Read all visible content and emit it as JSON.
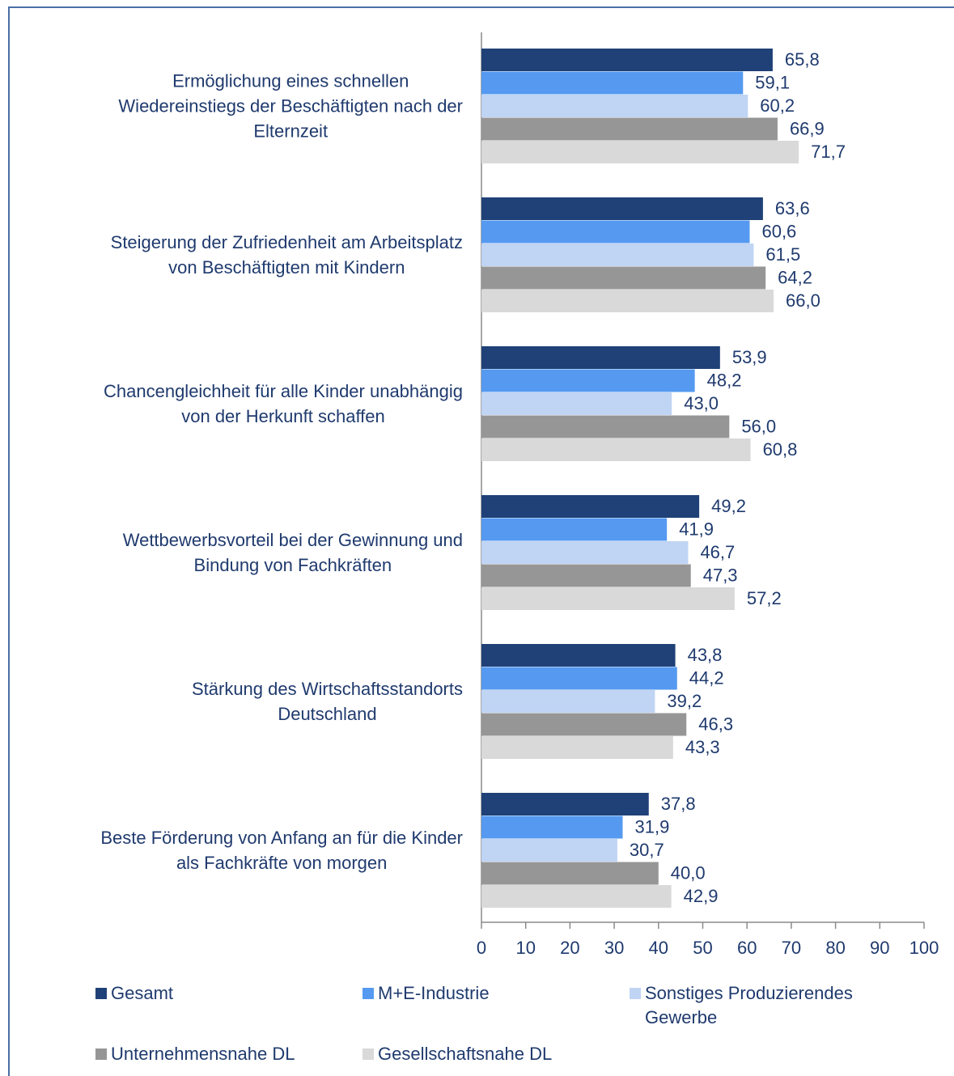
{
  "chart_data": {
    "type": "bar",
    "orientation": "horizontal",
    "categories": [
      "Ermöglichung eines schnellen\nWiedereinstiegs der Beschäftigten nach der\nElternzeit",
      "Steigerung der Zufriedenheit am Arbeitsplatz\nvon Beschäftigten mit Kindern",
      "Chancengleichheit für alle Kinder unabhängig\nvon der Herkunft schaffen",
      "Wettbewerbsvorteil bei der Gewinnung und\nBindung von Fachkräften",
      "Stärkung des Wirtschaftsstandorts\nDeutschland",
      "Beste Förderung von Anfang an für die Kinder\nals Fachkräfte von morgen"
    ],
    "series": [
      {
        "name": "Gesamt",
        "color": "#1f4177",
        "values": [
          65.8,
          63.6,
          53.9,
          49.2,
          43.8,
          37.8
        ],
        "value_labels": [
          "65,8",
          "63,6",
          "53,9",
          "49,2",
          "43,8",
          "37,8"
        ]
      },
      {
        "name": "M+E-Industrie",
        "color": "#5599f0",
        "values": [
          59.1,
          60.6,
          48.2,
          41.9,
          44.2,
          31.9
        ],
        "value_labels": [
          "59,1",
          "60,6",
          "48,2",
          "41,9",
          "44,2",
          "31,9"
        ]
      },
      {
        "name": "Sonstiges Produzierendes Gewerbe",
        "color": "#c0d4f4",
        "values": [
          60.2,
          61.5,
          43.0,
          46.7,
          39.2,
          30.7
        ],
        "value_labels": [
          "60,2",
          "61,5",
          "43,0",
          "46,7",
          "39,2",
          "30,7"
        ]
      },
      {
        "name": "Unternehmensnahe DL",
        "color": "#969696",
        "values": [
          66.9,
          64.2,
          56.0,
          47.3,
          46.3,
          40.0
        ],
        "value_labels": [
          "66,9",
          "64,2",
          "56,0",
          "47,3",
          "46,3",
          "40,0"
        ]
      },
      {
        "name": "Gesellschaftsnahe DL",
        "color": "#d9d9d9",
        "values": [
          71.7,
          66.0,
          60.8,
          57.2,
          43.3,
          42.9
        ],
        "value_labels": [
          "71,7",
          "66,0",
          "60,8",
          "57,2",
          "43,3",
          "42,9"
        ]
      }
    ],
    "xlim": [
      0,
      100
    ],
    "xticks": [
      0,
      10,
      20,
      30,
      40,
      50,
      60,
      70,
      80,
      90,
      100
    ],
    "legend": "bottom"
  }
}
